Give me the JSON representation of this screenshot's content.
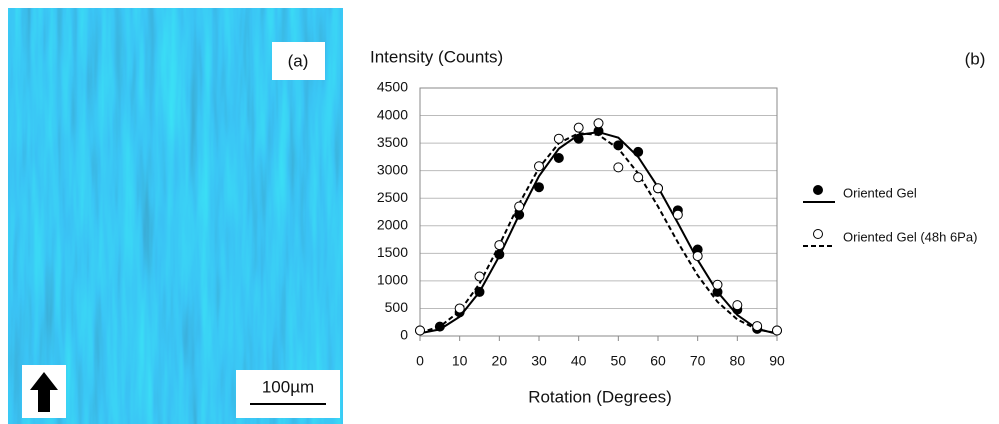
{
  "panel_a": {
    "label": "(a)",
    "scale_bar": "100µm"
  },
  "chart_data": {
    "type": "scatter",
    "label": "(b)",
    "y_label": "Intensity (Counts)",
    "x_label": "Rotation (Degrees)",
    "x": [
      0,
      5,
      10,
      15,
      20,
      25,
      30,
      35,
      40,
      45,
      50,
      55,
      60,
      65,
      70,
      75,
      80,
      85,
      90
    ],
    "series": [
      {
        "name": "Oriented Gel",
        "color": "#000000",
        "marker": "filled",
        "line": "solid",
        "values": [
          100,
          170,
          430,
          800,
          1480,
          2200,
          2700,
          3230,
          3580,
          3720,
          3460,
          3340,
          2680,
          2280,
          1570,
          800,
          480,
          130,
          100
        ],
        "fit": [
          50,
          120,
          350,
          800,
          1450,
          2200,
          2900,
          3400,
          3650,
          3700,
          3600,
          3250,
          2700,
          2050,
          1380,
          800,
          380,
          130,
          40
        ]
      },
      {
        "name": "Oriented Gel (48h 6Pa)",
        "color": "#000000",
        "marker": "open",
        "line": "dashed",
        "values": [
          100,
          null,
          500,
          1080,
          1650,
          2350,
          3080,
          3580,
          3780,
          3860,
          3060,
          2880,
          2680,
          2200,
          1450,
          930,
          560,
          180,
          100
        ],
        "fit": [
          60,
          170,
          450,
          950,
          1650,
          2400,
          3050,
          3500,
          3680,
          3650,
          3400,
          2950,
          2350,
          1700,
          1100,
          620,
          300,
          120,
          50
        ]
      }
    ],
    "xlim": [
      0,
      90
    ],
    "xticks": [
      0,
      10,
      20,
      30,
      40,
      50,
      60,
      70,
      80,
      90
    ],
    "ylim": [
      0,
      4500
    ],
    "yticks": [
      0,
      500,
      1000,
      1500,
      2000,
      2500,
      3000,
      3500,
      4000,
      4500
    ],
    "grid": true,
    "legend": "right"
  }
}
